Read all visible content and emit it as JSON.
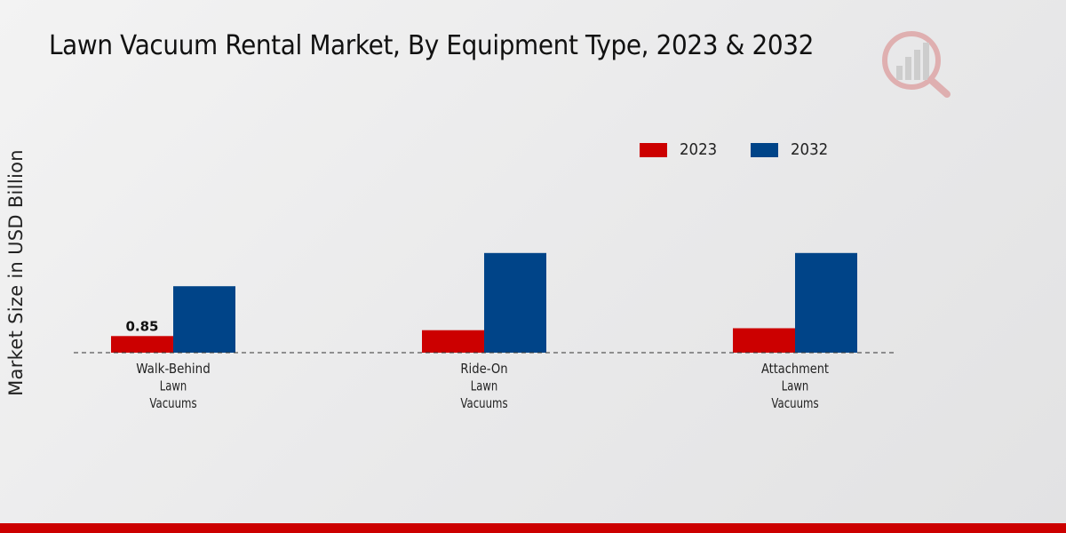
{
  "chart_data": {
    "type": "bar",
    "title": "Lawn Vacuum Rental Market, By Equipment Type, 2023 & 2032",
    "ylabel": "Market Size in USD Billion",
    "xlabel": "",
    "categories": [
      "Walk-Behind Lawn Vacuums",
      "Ride-On Lawn Vacuums",
      "Attachment Lawn Vacuums"
    ],
    "category_lines": [
      [
        "Walk-Behind",
        "Lawn",
        "Vacuums"
      ],
      [
        "Ride-On",
        "Lawn",
        "Vacuums"
      ],
      [
        "Attachment",
        "Lawn",
        "Vacuums"
      ]
    ],
    "series": [
      {
        "name": "2023",
        "color": "#cc0000",
        "values": [
          0.85,
          1.15,
          1.25
        ]
      },
      {
        "name": "2032",
        "color": "#004488",
        "values": [
          3.4,
          5.1,
          5.1
        ]
      }
    ],
    "data_labels": [
      {
        "series": 0,
        "index": 0,
        "text": "0.85"
      }
    ],
    "ylim": [
      0,
      10
    ],
    "grid": false,
    "legend_position": "top-right"
  }
}
